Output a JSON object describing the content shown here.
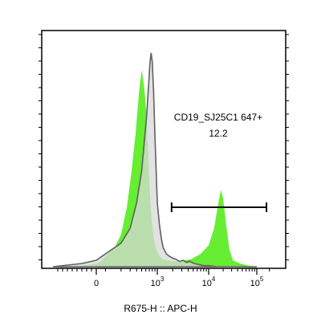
{
  "chart_data": {
    "type": "area",
    "x_scale": "biexponential",
    "xlabel": "R675-H :: APC-H",
    "ylabel": "",
    "x_ticks": [
      {
        "value": 0,
        "label": "0"
      },
      {
        "value": 1000,
        "label": "10",
        "sup": "3"
      },
      {
        "value": 10000,
        "label": "10",
        "sup": "4"
      },
      {
        "value": 100000,
        "label": "10",
        "sup": "5"
      }
    ],
    "y_ticks_labeled": false,
    "grid": false,
    "legend": "none",
    "series": [
      {
        "style": "filled-area",
        "fill": "#66ee33",
        "x": [
          -900,
          -300,
          0,
          50,
          100,
          150,
          200,
          260,
          320,
          380,
          420,
          460,
          500,
          540,
          580,
          620,
          660,
          700,
          760,
          850,
          950,
          1100,
          1300,
          1600,
          2000,
          2500,
          3200,
          4500,
          7000,
          10000,
          13000,
          16000,
          18000,
          20000,
          23000,
          27000,
          32000,
          45000,
          70000,
          100000
        ],
        "y": [
          0,
          0.5,
          1.5,
          2.5,
          5,
          9,
          15,
          28,
          45,
          62,
          75,
          85,
          92,
          87,
          80,
          70,
          55,
          40,
          25,
          14,
          8,
          5,
          3.5,
          3,
          2.5,
          2.5,
          3,
          3.5,
          6,
          10,
          18,
          30,
          36,
          32,
          20,
          8,
          3,
          1.5,
          0.5,
          0
        ]
      },
      {
        "style": "filled-area",
        "fill": "#d8d8d8",
        "stroke": "#606060",
        "x": [
          -900,
          -300,
          0,
          100,
          200,
          300,
          400,
          500,
          560,
          620,
          680,
          720,
          760,
          800,
          850,
          900,
          950,
          1000,
          1100,
          1200,
          1300,
          1500,
          1700,
          2000,
          2300,
          2700,
          3200,
          3700,
          4300,
          5200,
          6500,
          8000,
          10000,
          15000,
          30000,
          100000
        ],
        "y": [
          0,
          1.5,
          3,
          6,
          11,
          18,
          30,
          45,
          58,
          70,
          85,
          95,
          100,
          96,
          82,
          62,
          45,
          30,
          20,
          13,
          9,
          6,
          5,
          4,
          3.5,
          2.5,
          3,
          2,
          2.5,
          1.5,
          1,
          0.5,
          0.5,
          0,
          0,
          0
        ]
      }
    ],
    "gate": {
      "name": "CD19_SJ25C1 647+",
      "value": "12.2",
      "x_start": 1900,
      "x_end": 170000
    }
  }
}
